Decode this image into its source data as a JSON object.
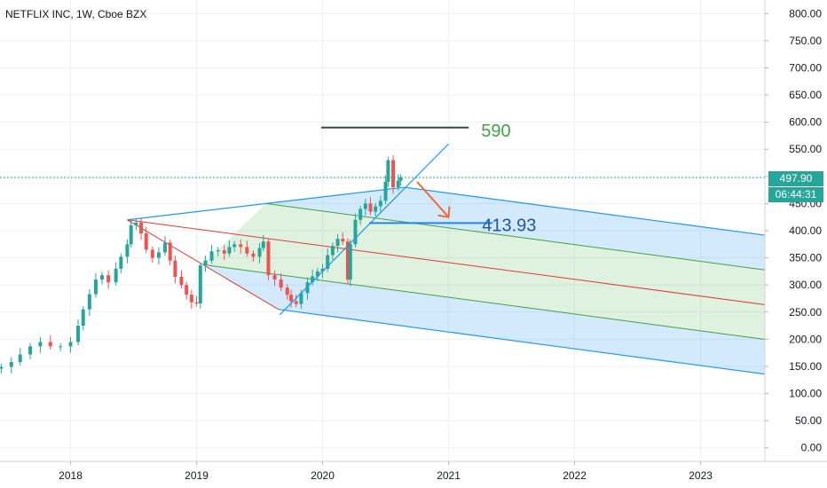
{
  "title": "NETFLIX INC, 1W, Cboe BZX",
  "last_price": "497.90",
  "countdown": "06:44:31",
  "colors": {
    "candle_up": "#26a69a",
    "candle_down": "#ef5350",
    "channel_border": "#2196f3",
    "channel_fill_outer": "rgba(33,150,243,0.20)",
    "channel_fill_inner": "rgba(76,175,80,0.18)",
    "median_line": "#e53935",
    "inner_lines": "#43a047",
    "price_line": "#26a69a"
  },
  "annotations": {
    "target_high": "590",
    "target_low": "413.93"
  },
  "chart_data": {
    "type": "candlestick",
    "title": "NETFLIX INC, 1W, Cboe BZX",
    "y_ticks": [
      "0.00",
      "50.00",
      "100.00",
      "150.00",
      "200.00",
      "250.00",
      "300.00",
      "350.00",
      "400.00",
      "450.00",
      "500.00",
      "550.00",
      "600.00",
      "650.00",
      "700.00",
      "750.00",
      "800.00"
    ],
    "x_ticks": [
      "2018",
      "2019",
      "2020",
      "2021",
      "2022",
      "2023"
    ],
    "ylim": [
      -25,
      825
    ],
    "xlim": [
      2017.44,
      2023.51
    ],
    "grid": true,
    "price_line": 497.9,
    "closes": [
      [
        2017.45,
        149
      ],
      [
        2017.53,
        158
      ],
      [
        2017.6,
        172
      ],
      [
        2017.68,
        187
      ],
      [
        2017.76,
        195
      ],
      [
        2017.84,
        187
      ],
      [
        2017.92,
        187
      ],
      [
        2018.0,
        195
      ],
      [
        2018.06,
        225
      ],
      [
        2018.1,
        255
      ],
      [
        2018.15,
        283
      ],
      [
        2018.2,
        310
      ],
      [
        2018.25,
        318
      ],
      [
        2018.3,
        305
      ],
      [
        2018.36,
        330
      ],
      [
        2018.4,
        352
      ],
      [
        2018.45,
        375
      ],
      [
        2018.48,
        410
      ],
      [
        2018.52,
        415
      ],
      [
        2018.56,
        395
      ],
      [
        2018.6,
        365
      ],
      [
        2018.65,
        350
      ],
      [
        2018.7,
        360
      ],
      [
        2018.75,
        378
      ],
      [
        2018.79,
        345
      ],
      [
        2018.83,
        315
      ],
      [
        2018.88,
        300
      ],
      [
        2018.92,
        282
      ],
      [
        2018.96,
        268
      ],
      [
        2019.0,
        266
      ],
      [
        2019.03,
        336
      ],
      [
        2019.07,
        345
      ],
      [
        2019.12,
        362
      ],
      [
        2019.17,
        364
      ],
      [
        2019.22,
        358
      ],
      [
        2019.26,
        370
      ],
      [
        2019.3,
        375
      ],
      [
        2019.35,
        370
      ],
      [
        2019.4,
        358
      ],
      [
        2019.45,
        352
      ],
      [
        2019.5,
        368
      ],
      [
        2019.53,
        380
      ],
      [
        2019.57,
        318
      ],
      [
        2019.62,
        310
      ],
      [
        2019.67,
        295
      ],
      [
        2019.72,
        282
      ],
      [
        2019.75,
        270
      ],
      [
        2019.79,
        265
      ],
      [
        2019.83,
        285
      ],
      [
        2019.88,
        305
      ],
      [
        2019.92,
        316
      ],
      [
        2019.96,
        325
      ],
      [
        2020.0,
        330
      ],
      [
        2020.04,
        355
      ],
      [
        2020.08,
        372
      ],
      [
        2020.12,
        385
      ],
      [
        2020.16,
        380
      ],
      [
        2020.2,
        310
      ],
      [
        2020.22,
        375
      ],
      [
        2020.26,
        420
      ],
      [
        2020.3,
        440
      ],
      [
        2020.34,
        450
      ],
      [
        2020.38,
        435
      ],
      [
        2020.42,
        445
      ],
      [
        2020.46,
        455
      ],
      [
        2020.5,
        490
      ],
      [
        2020.52,
        530
      ],
      [
        2020.56,
        480
      ],
      [
        2020.6,
        492
      ],
      [
        2020.62,
        497.9
      ]
    ],
    "pitchfork_pivots": [
      {
        "x": 2018.45,
        "y": 420
      },
      {
        "x": 2019.65,
        "y": 255
      },
      {
        "x": 2020.65,
        "y": 480
      }
    ],
    "horizontal_lines": [
      {
        "y": 590,
        "x_start": 2019.99,
        "x_end": 2021.16,
        "label": "590"
      },
      {
        "y": 414,
        "x_start": 2020.37,
        "x_end": 2021.35,
        "label": "413.93"
      }
    ]
  }
}
